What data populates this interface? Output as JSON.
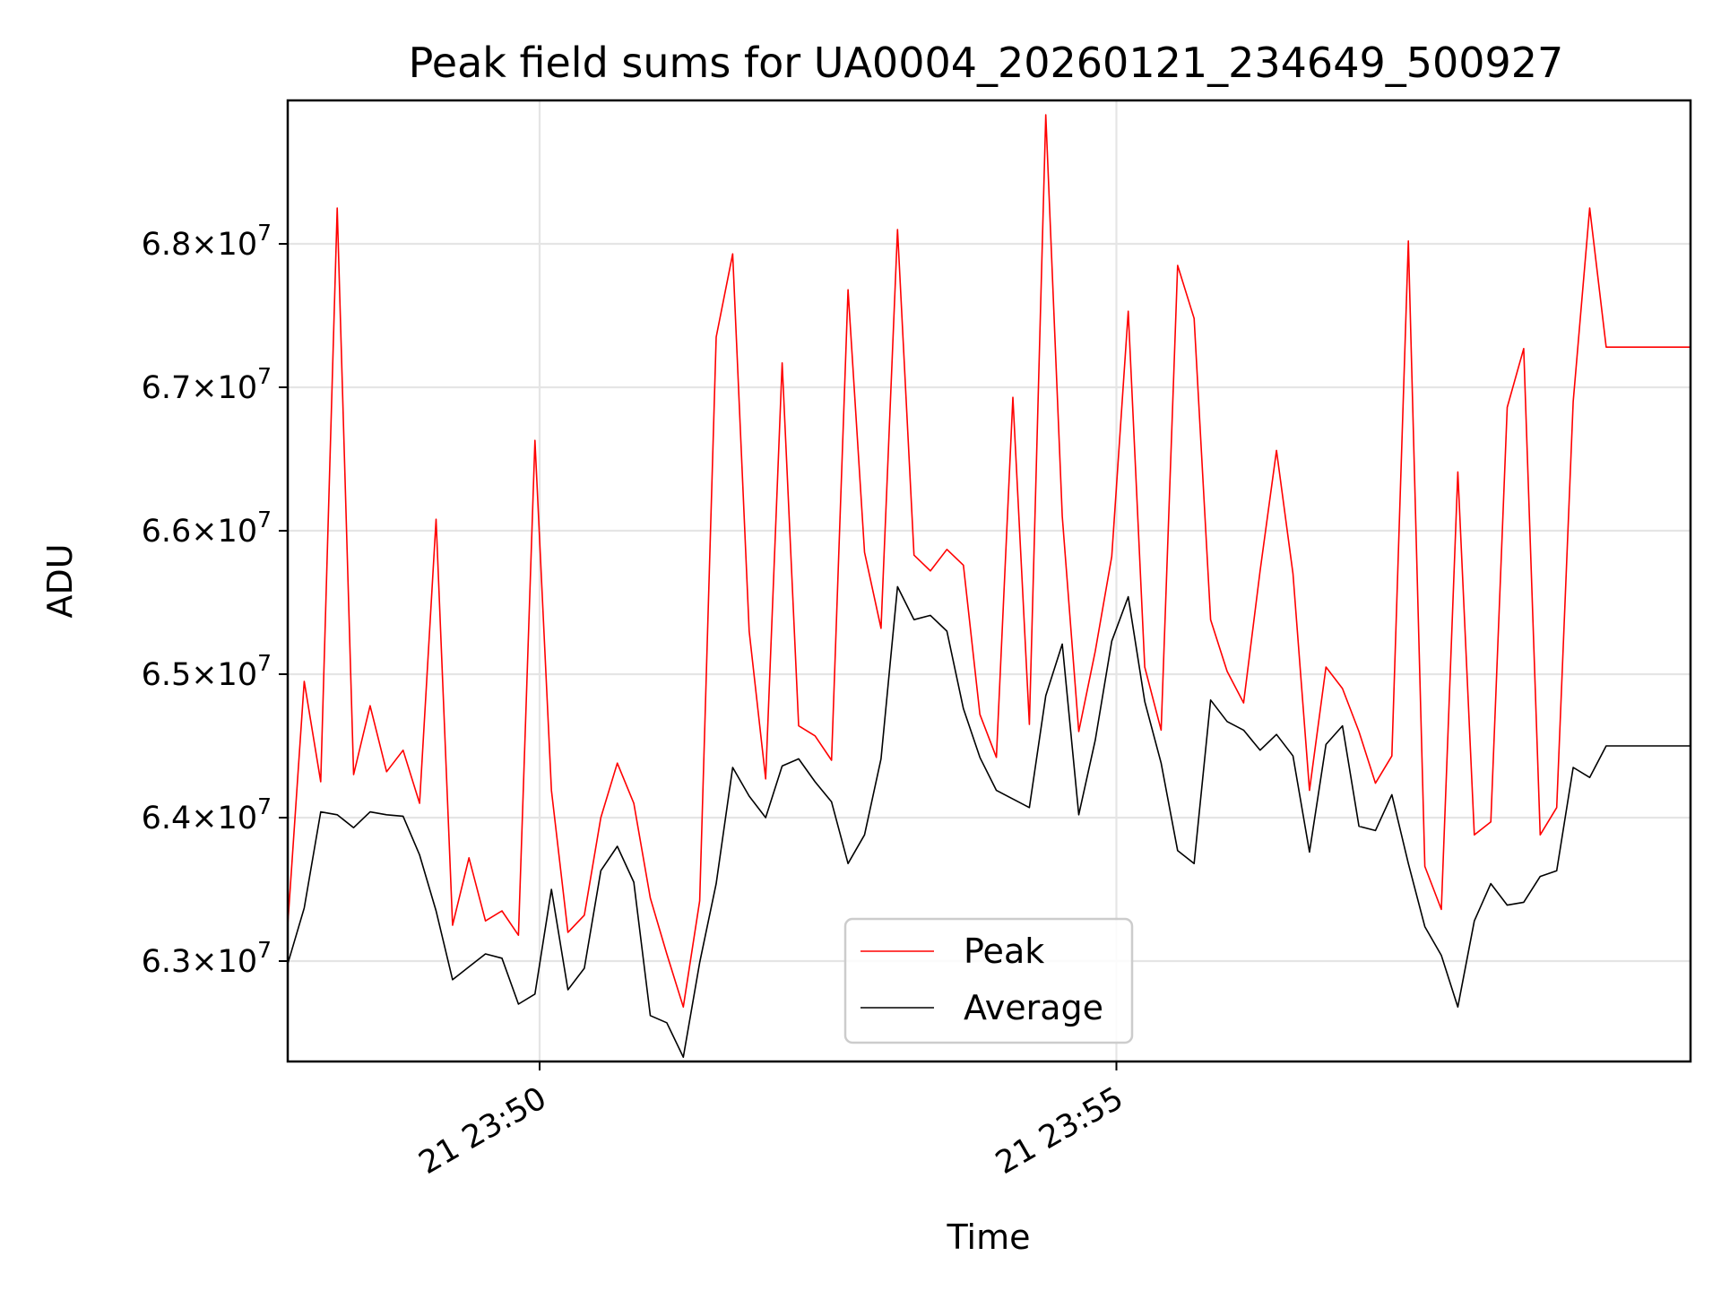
{
  "chart_data": {
    "type": "line",
    "title": "Peak field sums for UA0004_20260121_234649_500927",
    "xlabel": "Time",
    "ylabel": "ADU",
    "grid": true,
    "legend_position": "lower-center",
    "x_unit": "minutes after 23:46:49",
    "xlim": [
      1.0,
      13.16
    ],
    "ylim": [
      62.3,
      69.0
    ],
    "y_unit": "1e6 ADU",
    "x_ticks": [
      {
        "value": 3.1833,
        "label": "21 23:50"
      },
      {
        "value": 8.1833,
        "label": "21 23:55"
      }
    ],
    "y_ticks": [
      {
        "value": 63.0,
        "label": "6.3×10⁷",
        "mant": "6.3",
        "exp": "7"
      },
      {
        "value": 64.0,
        "label": "6.4×10⁷",
        "mant": "6.4",
        "exp": "7"
      },
      {
        "value": 65.0,
        "label": "6.5×10⁷",
        "mant": "6.5",
        "exp": "7"
      },
      {
        "value": 66.0,
        "label": "6.6×10⁷",
        "mant": "6.6",
        "exp": "7"
      },
      {
        "value": 67.0,
        "label": "6.7×10⁷",
        "mant": "6.7",
        "exp": "7"
      },
      {
        "value": 68.0,
        "label": "6.8×10⁷",
        "mant": "6.8",
        "exp": "7"
      }
    ],
    "x": [
      1.0,
      1.143,
      1.286,
      1.429,
      1.571,
      1.714,
      1.857,
      2.0,
      2.143,
      2.286,
      2.429,
      2.571,
      2.714,
      2.857,
      3.0,
      3.143,
      3.286,
      3.429,
      3.571,
      3.714,
      3.857,
      4.0,
      4.143,
      4.286,
      4.429,
      4.571,
      4.714,
      4.857,
      5.0,
      5.143,
      5.286,
      5.429,
      5.571,
      5.714,
      5.857,
      6.0,
      6.143,
      6.286,
      6.429,
      6.571,
      6.714,
      6.857,
      7.0,
      7.143,
      7.286,
      7.429,
      7.571,
      7.714,
      7.857,
      8.0,
      8.143,
      8.286,
      8.429,
      8.571,
      8.714,
      8.857,
      9.0,
      9.143,
      9.286,
      9.429,
      9.571,
      9.714,
      9.857,
      10.0,
      10.143,
      10.286,
      10.429,
      10.571,
      10.714,
      10.857,
      11.0,
      11.143,
      11.286,
      11.429,
      11.571,
      11.714,
      11.857,
      12.0,
      12.143,
      12.286,
      12.429,
      12.571,
      12.714,
      12.857,
      13.0,
      13.16
    ],
    "series": [
      {
        "name": "Peak",
        "color": "#ff0000",
        "values": [
          63.25,
          64.95,
          64.25,
          68.25,
          64.3,
          64.78,
          64.32,
          64.47,
          64.1,
          66.08,
          63.25,
          63.72,
          63.28,
          63.35,
          63.18,
          66.63,
          64.19,
          63.2,
          63.32,
          64.0,
          64.38,
          64.1,
          63.44,
          63.05,
          62.68,
          63.42,
          67.35,
          67.93,
          65.3,
          64.27,
          67.17,
          64.64,
          64.57,
          64.4,
          67.68,
          65.85,
          65.32,
          68.1,
          65.83,
          65.72,
          65.87,
          65.76,
          64.72,
          64.42,
          66.93,
          64.65,
          68.9,
          66.1,
          64.6,
          65.16,
          65.82,
          67.53,
          65.05,
          64.61,
          67.85,
          67.48,
          65.38,
          65.02,
          64.8,
          65.72,
          66.56,
          65.7,
          64.19,
          65.05,
          64.9,
          64.6,
          64.24,
          64.43,
          68.02,
          63.66,
          63.36,
          66.41,
          63.88,
          63.97,
          66.86,
          67.27,
          63.88,
          64.07,
          66.9,
          68.25,
          67.28,
          67.28,
          67.28,
          67.28,
          67.28,
          67.28
        ]
      },
      {
        "name": "Average",
        "color": "#000000",
        "values": [
          62.98,
          63.37,
          64.04,
          64.02,
          63.93,
          64.04,
          64.02,
          64.01,
          63.74,
          63.35,
          62.87,
          62.96,
          63.05,
          63.02,
          62.7,
          62.77,
          63.5,
          62.8,
          62.95,
          63.63,
          63.8,
          63.55,
          62.62,
          62.57,
          62.33,
          62.99,
          63.54,
          64.35,
          64.15,
          64.0,
          64.36,
          64.41,
          64.25,
          64.11,
          63.68,
          63.88,
          64.41,
          65.61,
          65.38,
          65.41,
          65.3,
          64.76,
          64.42,
          64.19,
          64.13,
          64.07,
          64.85,
          65.21,
          64.02,
          64.54,
          65.23,
          65.54,
          64.81,
          64.38,
          63.77,
          63.68,
          64.82,
          64.67,
          64.61,
          64.47,
          64.58,
          64.43,
          63.76,
          64.51,
          64.64,
          63.94,
          63.91,
          64.16,
          63.68,
          63.24,
          63.04,
          62.68,
          63.28,
          63.54,
          63.39,
          63.41,
          63.59,
          63.63,
          64.35,
          64.28,
          64.5,
          64.5,
          64.5,
          64.5,
          64.5,
          64.5
        ]
      }
    ]
  }
}
